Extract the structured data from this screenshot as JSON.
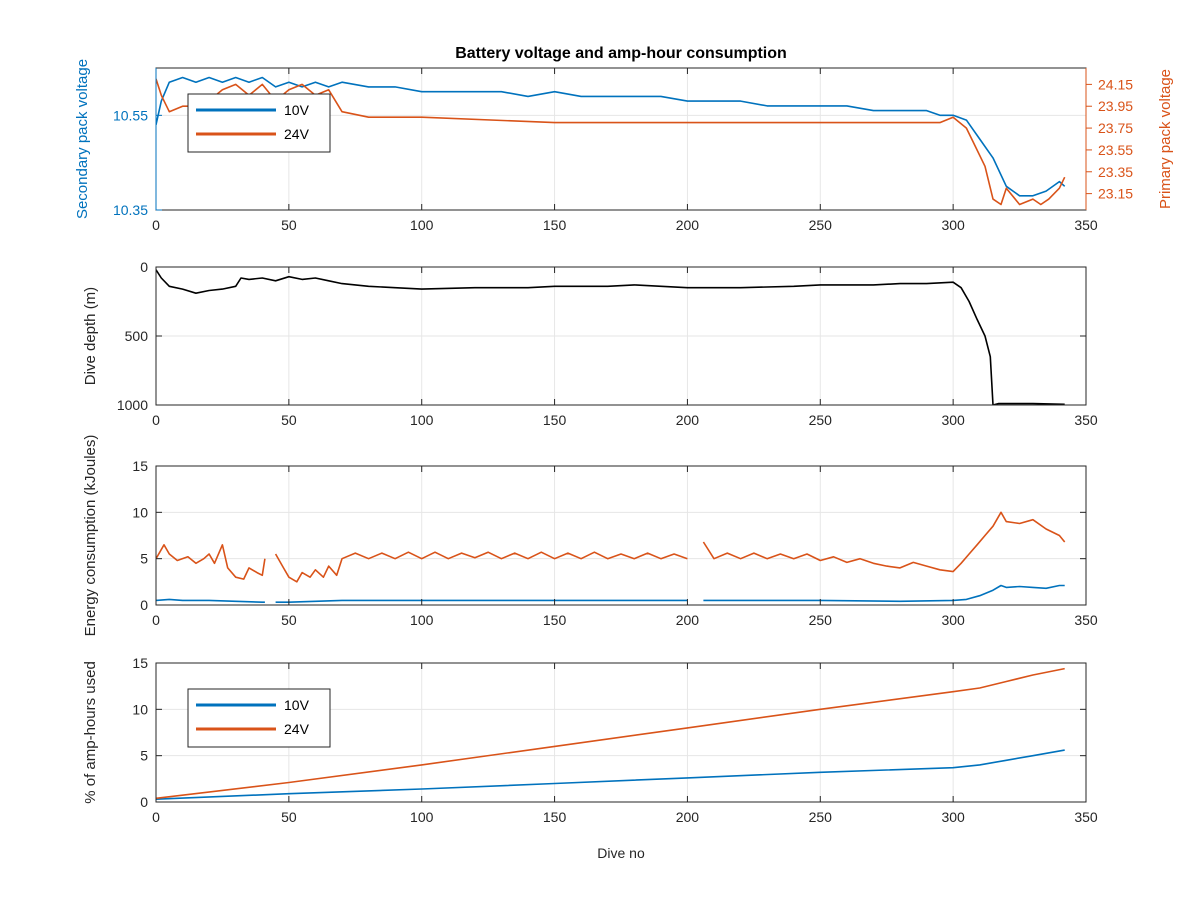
{
  "figure": {
    "title": "Battery voltage and amp-hour consumption",
    "xlabel": "Dive no",
    "colors": {
      "blue": "#0072BD",
      "orange": "#D95319",
      "black": "#000000",
      "grid": "#e6e6e6",
      "axis": "#262626"
    }
  },
  "chart_data": [
    {
      "type": "line",
      "title": "Battery voltage and amp-hour consumption",
      "xlim": [
        0,
        350
      ],
      "xticks": [
        0,
        50,
        100,
        150,
        200,
        250,
        300,
        350
      ],
      "ylabel_left": "Secondary pack voltage",
      "ylim_left": [
        10.35,
        10.65
      ],
      "yticks_left": [
        10.35,
        10.55
      ],
      "ylabel_right": "Primary pack voltage",
      "ylim_right": [
        23.0,
        24.3
      ],
      "yticks_right": [
        23.15,
        23.35,
        23.55,
        23.75,
        23.95,
        24.15
      ],
      "grid": true,
      "legend": [
        "10V",
        "24V"
      ],
      "legend_position": "top-left",
      "series": [
        {
          "name": "10V",
          "axis": "left",
          "color": "#0072BD",
          "x": [
            0,
            2,
            5,
            10,
            15,
            20,
            25,
            30,
            35,
            40,
            45,
            50,
            55,
            60,
            65,
            70,
            80,
            90,
            100,
            110,
            120,
            130,
            140,
            150,
            160,
            170,
            180,
            190,
            200,
            210,
            220,
            230,
            240,
            250,
            260,
            270,
            280,
            290,
            295,
            300,
            305,
            310,
            315,
            320,
            325,
            330,
            335,
            340,
            342
          ],
          "y": [
            10.53,
            10.58,
            10.62,
            10.63,
            10.62,
            10.63,
            10.62,
            10.63,
            10.62,
            10.63,
            10.61,
            10.62,
            10.61,
            10.62,
            10.61,
            10.62,
            10.61,
            10.61,
            10.6,
            10.6,
            10.6,
            10.6,
            10.59,
            10.6,
            10.59,
            10.59,
            10.59,
            10.59,
            10.58,
            10.58,
            10.58,
            10.57,
            10.57,
            10.57,
            10.57,
            10.56,
            10.56,
            10.56,
            10.55,
            10.55,
            10.54,
            10.5,
            10.46,
            10.4,
            10.38,
            10.38,
            10.39,
            10.41,
            10.4
          ]
        },
        {
          "name": "24V",
          "axis": "right",
          "color": "#D95319",
          "x": [
            0,
            2,
            5,
            10,
            15,
            20,
            25,
            30,
            35,
            40,
            45,
            50,
            55,
            60,
            65,
            70,
            80,
            90,
            100,
            150,
            200,
            250,
            290,
            295,
            300,
            305,
            308,
            312,
            315,
            318,
            320,
            325,
            330,
            333,
            336,
            340,
            342
          ],
          "y": [
            24.2,
            24.05,
            23.9,
            23.95,
            23.95,
            24.0,
            24.1,
            24.15,
            24.05,
            24.15,
            24.0,
            24.1,
            24.15,
            24.05,
            24.1,
            23.9,
            23.85,
            23.85,
            23.85,
            23.8,
            23.8,
            23.8,
            23.8,
            23.8,
            23.85,
            23.75,
            23.6,
            23.4,
            23.1,
            23.05,
            23.2,
            23.05,
            23.1,
            23.05,
            23.1,
            23.2,
            23.3
          ]
        }
      ]
    },
    {
      "type": "line",
      "xlim": [
        0,
        350
      ],
      "xticks": [
        0,
        50,
        100,
        150,
        200,
        250,
        300,
        350
      ],
      "ylabel": "Dive depth (m)",
      "ylim": [
        0,
        1000
      ],
      "y_reversed": true,
      "yticks": [
        0,
        500,
        1000
      ],
      "grid": true,
      "series": [
        {
          "color": "#000000",
          "x": [
            0,
            2,
            5,
            10,
            15,
            20,
            25,
            30,
            32,
            35,
            40,
            45,
            50,
            55,
            60,
            65,
            70,
            80,
            90,
            100,
            120,
            140,
            150,
            160,
            170,
            180,
            200,
            220,
            240,
            250,
            260,
            270,
            280,
            290,
            300,
            303,
            306,
            309,
            312,
            314,
            315,
            317,
            320,
            330,
            342
          ],
          "y": [
            20,
            80,
            140,
            160,
            190,
            170,
            160,
            140,
            80,
            90,
            80,
            100,
            70,
            90,
            80,
            100,
            120,
            140,
            150,
            160,
            150,
            150,
            140,
            140,
            140,
            130,
            150,
            150,
            140,
            130,
            130,
            130,
            120,
            120,
            110,
            150,
            250,
            380,
            500,
            650,
            1000,
            990,
            990,
            990,
            995
          ]
        }
      ]
    },
    {
      "type": "line",
      "xlim": [
        0,
        350
      ],
      "xticks": [
        0,
        50,
        100,
        150,
        200,
        250,
        300,
        350
      ],
      "ylabel": "Energy consumption (kJoules)",
      "ylim": [
        0,
        15
      ],
      "yticks": [
        0,
        5,
        10,
        15
      ],
      "grid": true,
      "series": [
        {
          "color": "#D95319",
          "segments": [
            {
              "x": [
                0,
                3,
                5,
                8,
                12,
                15,
                18,
                20,
                22,
                25,
                27,
                30,
                33,
                35,
                38,
                40,
                41
              ],
              "y": [
                5.0,
                6.5,
                5.5,
                4.8,
                5.2,
                4.5,
                5.0,
                5.5,
                4.5,
                6.5,
                4.0,
                3.0,
                2.8,
                4.0,
                3.5,
                3.2,
                5.0
              ]
            },
            {
              "x": [
                45,
                48,
                50,
                53,
                55,
                58,
                60,
                63,
                65,
                68,
                70,
                75,
                80,
                85,
                90,
                95,
                100,
                105,
                110,
                115,
                120,
                125,
                130,
                135,
                140,
                145,
                150,
                155,
                160,
                165,
                170,
                175,
                180,
                185,
                190,
                195,
                200
              ],
              "y": [
                5.5,
                4.0,
                3.0,
                2.5,
                3.5,
                3.0,
                3.8,
                3.0,
                4.2,
                3.2,
                5.0,
                5.6,
                5.0,
                5.6,
                5.0,
                5.7,
                5.0,
                5.7,
                5.0,
                5.6,
                5.1,
                5.7,
                5.0,
                5.6,
                5.0,
                5.7,
                5.0,
                5.6,
                5.0,
                5.7,
                5.0,
                5.5,
                5.0,
                5.6,
                5.0,
                5.5,
                5.0
              ]
            },
            {
              "x": [
                206,
                210,
                215,
                220,
                225,
                230,
                235,
                240,
                245,
                250,
                255,
                260,
                265,
                270,
                275,
                280,
                285,
                290,
                295,
                300,
                303,
                306,
                309,
                312,
                315,
                318,
                320,
                325,
                330,
                335,
                340,
                342
              ],
              "y": [
                6.8,
                5.0,
                5.6,
                5.0,
                5.6,
                5.0,
                5.5,
                5.0,
                5.5,
                4.8,
                5.2,
                4.6,
                5.0,
                4.5,
                4.2,
                4.0,
                4.6,
                4.2,
                3.8,
                3.6,
                4.5,
                5.5,
                6.5,
                7.5,
                8.5,
                10.0,
                9.0,
                8.8,
                9.2,
                8.2,
                7.5,
                6.8
              ]
            }
          ]
        },
        {
          "color": "#0072BD",
          "segments": [
            {
              "x": [
                0,
                5,
                10,
                20,
                30,
                40,
                41
              ],
              "y": [
                0.5,
                0.6,
                0.5,
                0.5,
                0.4,
                0.3,
                0.3
              ]
            },
            {
              "x": [
                45,
                50,
                60,
                70,
                100,
                150,
                200
              ],
              "y": [
                0.3,
                0.3,
                0.4,
                0.5,
                0.5,
                0.5,
                0.5
              ]
            },
            {
              "x": [
                206,
                220,
                250,
                280,
                300,
                305,
                310,
                315,
                318,
                320,
                325,
                330,
                335,
                340,
                342
              ],
              "y": [
                0.5,
                0.5,
                0.5,
                0.4,
                0.5,
                0.6,
                1.0,
                1.6,
                2.1,
                1.9,
                2.0,
                1.9,
                1.8,
                2.1,
                2.1
              ]
            }
          ]
        }
      ]
    },
    {
      "type": "line",
      "xlim": [
        0,
        350
      ],
      "xticks": [
        0,
        50,
        100,
        150,
        200,
        250,
        300,
        350
      ],
      "xlabel": "Dive no",
      "ylabel": "% of amp-hours used",
      "ylim": [
        0,
        15
      ],
      "yticks": [
        0,
        5,
        10,
        15
      ],
      "grid": true,
      "legend": [
        "10V",
        "24V"
      ],
      "legend_position": "top-left",
      "series": [
        {
          "name": "10V",
          "color": "#0072BD",
          "x": [
            0,
            50,
            100,
            150,
            200,
            250,
            300,
            310,
            320,
            330,
            342
          ],
          "y": [
            0.3,
            0.9,
            1.4,
            2.0,
            2.6,
            3.2,
            3.7,
            4.0,
            4.5,
            5.0,
            5.6
          ]
        },
        {
          "name": "24V",
          "color": "#D95319",
          "x": [
            0,
            50,
            100,
            150,
            200,
            250,
            300,
            310,
            320,
            330,
            342
          ],
          "y": [
            0.4,
            2.1,
            4.0,
            6.0,
            8.0,
            10.0,
            11.9,
            12.3,
            13.0,
            13.7,
            14.4
          ]
        }
      ]
    }
  ]
}
